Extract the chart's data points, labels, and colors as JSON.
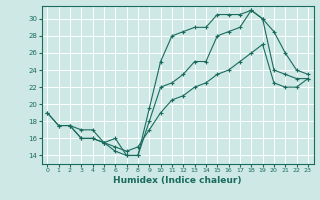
{
  "xlabel": "Humidex (Indice chaleur)",
  "ylabel": "",
  "background_color": "#cde8e5",
  "grid_color": "#ffffff",
  "line_color": "#1a6b5e",
  "xlim": [
    -0.5,
    23.5
  ],
  "ylim": [
    13,
    31.5
  ],
  "yticks": [
    14,
    16,
    18,
    20,
    22,
    24,
    26,
    28,
    30
  ],
  "xticks": [
    0,
    1,
    2,
    3,
    4,
    5,
    6,
    7,
    8,
    9,
    10,
    11,
    12,
    13,
    14,
    15,
    16,
    17,
    18,
    19,
    20,
    21,
    22,
    23
  ],
  "line1_x": [
    0,
    1,
    2,
    3,
    4,
    5,
    6,
    7,
    8,
    9,
    10,
    11,
    12,
    13,
    14,
    15,
    16,
    17,
    18,
    19,
    20,
    21,
    22,
    23
  ],
  "line1_y": [
    19,
    17.5,
    17.5,
    17,
    17,
    15.5,
    14.5,
    14,
    14,
    19.5,
    25,
    28,
    28.5,
    29,
    29,
    30.5,
    30.5,
    30.5,
    31,
    30,
    24,
    23.5,
    23,
    23
  ],
  "line2_x": [
    2,
    3,
    4,
    5,
    6,
    7,
    8,
    9,
    10,
    11,
    12,
    13,
    14,
    15,
    16,
    17,
    18,
    19,
    20,
    21,
    22,
    23
  ],
  "line2_y": [
    17.5,
    16,
    16,
    15.5,
    16,
    14,
    14,
    18,
    22,
    22.5,
    23.5,
    25,
    25,
    28,
    28.5,
    29,
    31,
    30,
    28.5,
    26,
    24,
    23.5
  ],
  "line3_x": [
    0,
    1,
    2,
    3,
    4,
    5,
    6,
    7,
    8,
    9,
    10,
    11,
    12,
    13,
    14,
    15,
    16,
    17,
    18,
    19,
    20,
    21,
    22,
    23
  ],
  "line3_y": [
    19,
    17.5,
    17.5,
    16,
    16,
    15.5,
    15,
    14.5,
    15,
    17,
    19,
    20.5,
    21,
    22,
    22.5,
    23.5,
    24,
    25,
    26,
    27,
    22.5,
    22,
    22,
    23
  ]
}
